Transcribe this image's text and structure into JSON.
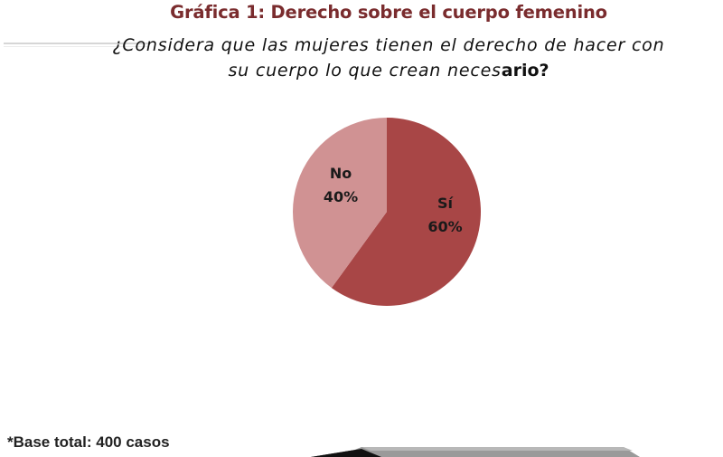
{
  "title": "Gráfica 1: Derecho sobre el cuerpo femenino",
  "question_part1": "¿Considera que las mujeres tienen el derecho de hacer con su cuerpo lo que crean neces",
  "question_part2": "ario?",
  "footnote": "*Base total: 400 casos",
  "colors": {
    "title": "#7a2c2e",
    "si": "#a84646",
    "no": "#d09293"
  },
  "chart_data": {
    "type": "pie",
    "title": "Gráfica 1: Derecho sobre el cuerpo femenino",
    "slices": [
      {
        "label": "Sí",
        "value": 60,
        "value_label": "60%",
        "color": "#a84646"
      },
      {
        "label": "No",
        "value": 40,
        "value_label": "40%",
        "color": "#d09293"
      }
    ],
    "start": "12 o'clock",
    "direction": "clockwise",
    "legend": "none"
  }
}
